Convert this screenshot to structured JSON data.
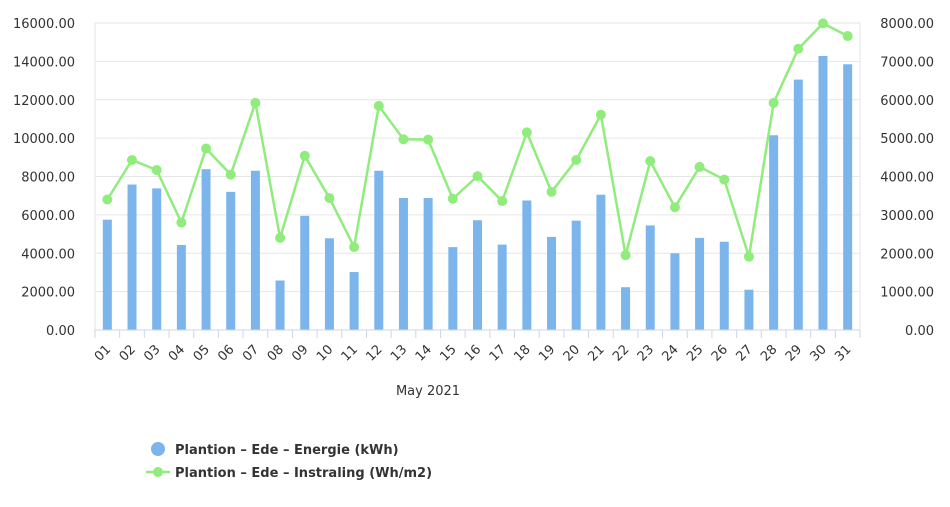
{
  "chart_data": {
    "type": "bar",
    "title": "",
    "xlabel": "May 2021",
    "ylabel": "",
    "ylabel_right": "",
    "categories": [
      "01",
      "02",
      "03",
      "04",
      "05",
      "06",
      "07",
      "08",
      "09",
      "10",
      "11",
      "12",
      "13",
      "14",
      "15",
      "16",
      "17",
      "18",
      "19",
      "20",
      "21",
      "22",
      "23",
      "24",
      "25",
      "26",
      "27",
      "28",
      "29",
      "30",
      "31"
    ],
    "left_axis": {
      "min": 0,
      "max": 16000,
      "step": 2000,
      "ticks": [
        "0.00",
        "2000.00",
        "4000.00",
        "6000.00",
        "8000.00",
        "10000.00",
        "12000.00",
        "14000.00",
        "16000.00"
      ]
    },
    "right_axis": {
      "min": 0,
      "max": 8000,
      "step": 1000,
      "ticks": [
        "0.00",
        "1000.00",
        "2000.00",
        "3000.00",
        "4000.00",
        "5000.00",
        "6000.00",
        "7000.00",
        "8000.00"
      ]
    },
    "grid": true,
    "legend_position": "bottom-left",
    "series": [
      {
        "name": "Plantion – Ede – Energie (kWh)",
        "type": "bar",
        "axis": "left",
        "color": "#7cb5ec",
        "values": [
          5750,
          7580,
          7380,
          4430,
          8380,
          7200,
          8300,
          2580,
          5950,
          4780,
          3020,
          8300,
          6880,
          6880,
          4320,
          5720,
          4450,
          6750,
          4850,
          5700,
          7050,
          2230,
          5450,
          4000,
          4800,
          4600,
          2100,
          10150,
          13050,
          14280,
          13850
        ]
      },
      {
        "name": "Plantion – Ede – Instraling (Wh/m2)",
        "type": "line",
        "axis": "right",
        "color": "#90ed7d",
        "values": [
          3400,
          4430,
          4170,
          2800,
          4730,
          4050,
          5920,
          2400,
          4540,
          3440,
          2160,
          5840,
          4970,
          4960,
          3420,
          4010,
          3360,
          5150,
          3600,
          4430,
          5610,
          1950,
          4400,
          3200,
          4250,
          3920,
          1910,
          5920,
          7330,
          7990,
          7660
        ]
      }
    ]
  }
}
